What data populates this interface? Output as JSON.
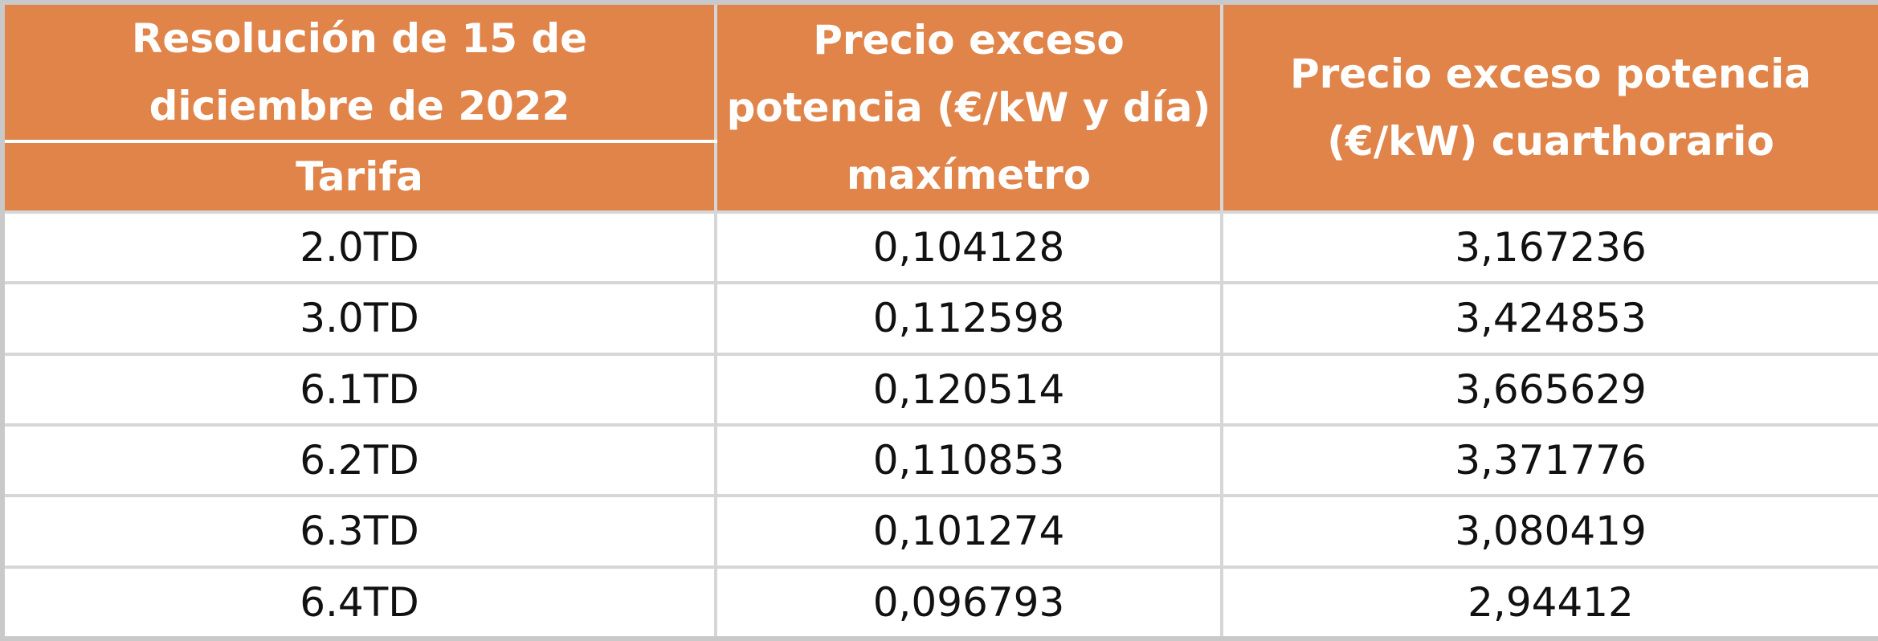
{
  "table": {
    "header": {
      "group": "Resolución de 15 de diciembre de 2022",
      "tarifa": "Tarifa",
      "maximetro": "Precio exceso potencia (€/kW y día) maxímetro",
      "cuarthorario": "Precio exceso potencia (€/kW) cuarthorario"
    },
    "rows": [
      [
        "2.0TD",
        "0,104128",
        "3,167236"
      ],
      [
        "3.0TD",
        "0,112598",
        "3,424853"
      ],
      [
        "6.1TD",
        "0,120514",
        "3,665629"
      ],
      [
        "6.2TD",
        "0,110853",
        "3,371776"
      ],
      [
        "6.3TD",
        "0,101274",
        "3,080419"
      ],
      [
        "6.4TD",
        "0,096793",
        "2,94412"
      ]
    ]
  }
}
